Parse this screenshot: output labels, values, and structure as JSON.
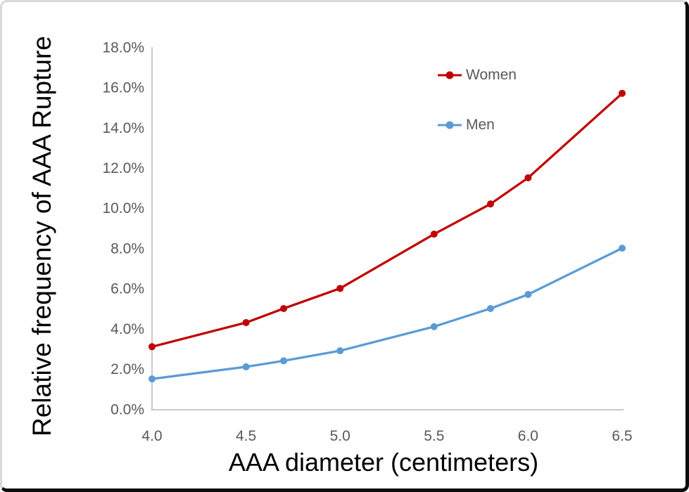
{
  "chart_data": {
    "type": "line",
    "title": "",
    "xlabel": "AAA diameter (centimeters)",
    "ylabel": "Relative frequency of AAA Rupture",
    "x": [
      4.0,
      4.5,
      4.7,
      5.0,
      5.5,
      5.8,
      6.0,
      6.5
    ],
    "series": [
      {
        "name": "Women",
        "color": "#c00000",
        "values": [
          3.1,
          4.3,
          5.0,
          6.0,
          8.7,
          10.2,
          11.5,
          15.7
        ]
      },
      {
        "name": "Men",
        "color": "#5b9bd5",
        "values": [
          1.5,
          2.1,
          2.4,
          2.9,
          4.1,
          5.0,
          5.7,
          8.0
        ]
      }
    ],
    "xlim": [
      4.0,
      6.5
    ],
    "ylim": [
      0,
      18
    ],
    "xticks": [
      4.0,
      4.5,
      5.0,
      5.5,
      6.0,
      6.5
    ],
    "xtick_labels": [
      "4.0",
      "4.5",
      "5.0",
      "5.5",
      "6.0",
      "6.5"
    ],
    "ytick_values": [
      0,
      2,
      4,
      6,
      8,
      10,
      12,
      14,
      16,
      18
    ],
    "ytick_labels": [
      "0.0%",
      "2.0%",
      "4.0%",
      "6.0%",
      "8.0%",
      "10.0%",
      "12.0%",
      "14.0%",
      "16.0%",
      "18.0%"
    ],
    "grid": false,
    "legend_position": "inside top-center-right, vertical",
    "colors": {
      "axis_line": "#c9c9c9",
      "tick_text": "#595959",
      "title_text": "#000000",
      "background": "#ffffff"
    }
  }
}
